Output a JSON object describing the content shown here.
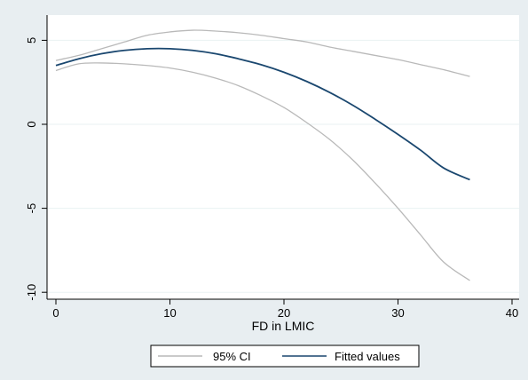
{
  "chart_data": {
    "type": "line",
    "title": "",
    "xlabel": "FD in LMIC",
    "ylabel": "",
    "xlim": [
      0,
      40
    ],
    "ylim": [
      -10,
      6
    ],
    "xticks": [
      "0",
      "10",
      "20",
      "30",
      "40"
    ],
    "yticks": [
      "-10",
      "-5",
      "0",
      "5"
    ],
    "grid": true,
    "legend_position": "bottom",
    "colors": {
      "ci": "#b9b9b9",
      "fitted": "#1a476f",
      "plot_bg": "#ffffff",
      "page_bg": "#e8eef1",
      "grid": "#eaf2f3"
    },
    "series": [
      {
        "name": "95% CI",
        "role": "upper",
        "x": [
          0,
          2,
          4,
          6,
          8,
          10,
          12,
          14,
          16,
          18,
          20,
          22,
          24,
          26,
          28,
          30,
          32,
          34,
          36.3
        ],
        "y": [
          3.8,
          4.1,
          4.5,
          4.9,
          5.3,
          5.5,
          5.6,
          5.55,
          5.45,
          5.3,
          5.1,
          4.9,
          4.6,
          4.35,
          4.1,
          3.85,
          3.55,
          3.25,
          2.85
        ]
      },
      {
        "name": "95% CI",
        "role": "lower",
        "x": [
          0,
          2,
          4,
          6,
          8,
          10,
          12,
          14,
          16,
          18,
          20,
          22,
          24,
          26,
          28,
          30,
          32,
          34,
          36.3
        ],
        "y": [
          3.2,
          3.6,
          3.65,
          3.6,
          3.5,
          3.35,
          3.1,
          2.75,
          2.3,
          1.7,
          1.0,
          0.1,
          -0.9,
          -2.1,
          -3.5,
          -5.0,
          -6.6,
          -8.2,
          -9.3
        ]
      },
      {
        "name": "Fitted values",
        "role": "fitted",
        "x": [
          0,
          2,
          4,
          6,
          8,
          10,
          12,
          14,
          16,
          18,
          20,
          22,
          24,
          26,
          28,
          30,
          32,
          34,
          36.3
        ],
        "y": [
          3.5,
          3.9,
          4.2,
          4.4,
          4.5,
          4.5,
          4.4,
          4.2,
          3.9,
          3.55,
          3.1,
          2.55,
          1.9,
          1.15,
          0.3,
          -0.6,
          -1.55,
          -2.6,
          -3.3
        ]
      }
    ],
    "legend": [
      "95% CI",
      "Fitted values"
    ]
  }
}
